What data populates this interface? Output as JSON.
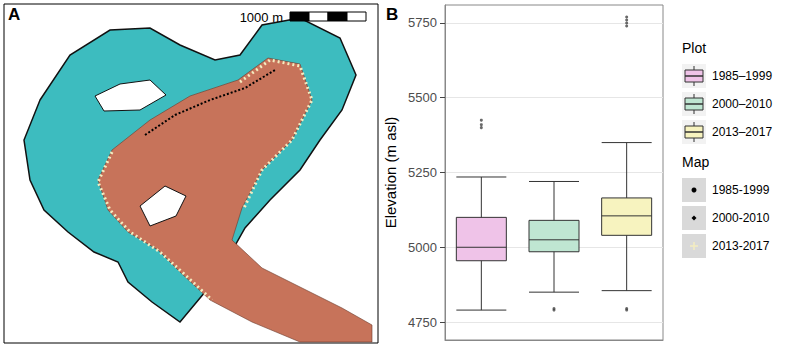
{
  "chart_data": [
    {
      "type": "map",
      "panel_label": "A",
      "scale_bar_label": "1000 m"
    },
    {
      "type": "boxplot",
      "panel_label": "B",
      "y_label": "Elevation (m asl)",
      "categories": [
        "1985–1999",
        "2000–2010",
        "2013–2017"
      ],
      "legend_title": "Plot",
      "series": [
        {
          "name": "1985–1999",
          "color": "#efc3e8",
          "min": 4790,
          "q1": 4955,
          "median": 5000,
          "q3": 5100,
          "max": 5235,
          "outliers": [
            5400,
            5410,
            5425
          ]
        },
        {
          "name": "2000–2010",
          "color": "#bfe6d2",
          "min": 4850,
          "q1": 4985,
          "median": 5025,
          "q3": 5090,
          "max": 5220,
          "outliers": [
            4790,
            4795
          ]
        },
        {
          "name": "2013–2017",
          "color": "#f7f3bf",
          "min": 4855,
          "q1": 5040,
          "median": 5105,
          "q3": 5165,
          "max": 5350,
          "outliers": [
            4790,
            4795,
            5740,
            5750,
            5760,
            5770
          ]
        }
      ],
      "map_legend": {
        "title": "Map",
        "entries": [
          {
            "name": "1985-1999",
            "color": "#000000",
            "marker": "circle"
          },
          {
            "name": "2000-2010",
            "color": "#000000",
            "marker": "diamond"
          },
          {
            "name": "2013-2017",
            "color": "#f3ecc0",
            "marker": "cross"
          }
        ]
      },
      "ylim": [
        4690,
        5810
      ],
      "yticks": [
        4750,
        5000,
        5250,
        5500,
        5750
      ],
      "grid": true,
      "tick_labels": "y"
    }
  ]
}
